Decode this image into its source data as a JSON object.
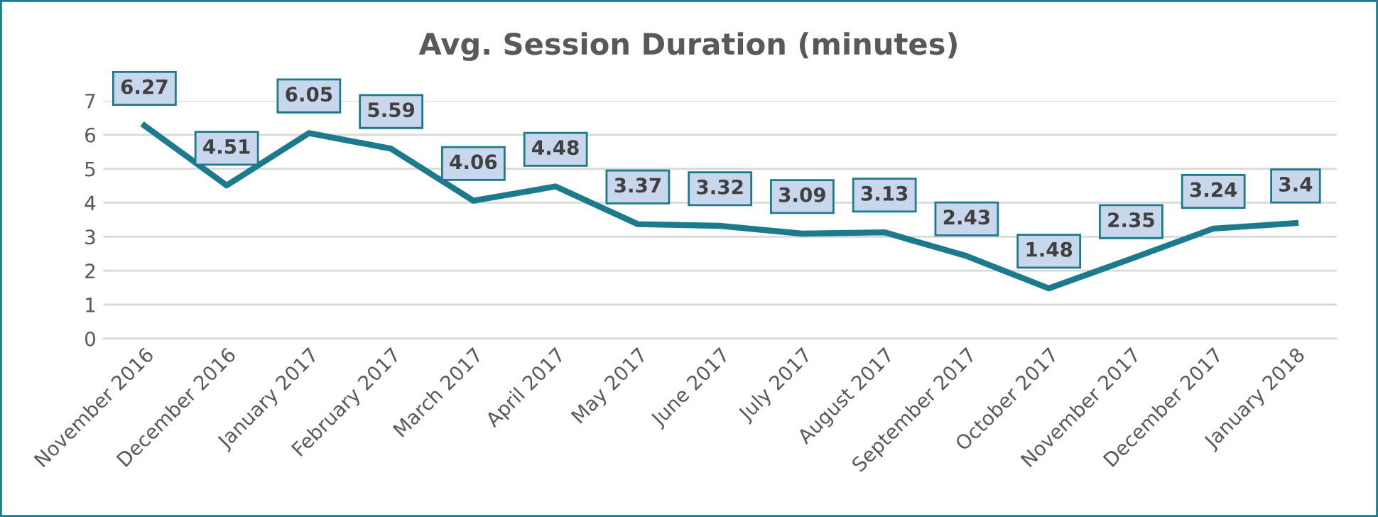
{
  "chart_data": {
    "type": "line",
    "title": "Avg. Session Duration (minutes)",
    "categories": [
      "November 2016",
      "December 2016",
      "January 2017",
      "February 2017",
      "March 2017",
      "April 2017",
      "May 2017",
      "June 2017",
      "July 2017",
      "August 2017",
      "September 2017",
      "October 2017",
      "November 2017",
      "December 2017",
      "January 2018"
    ],
    "series": [
      {
        "color": "#1b7a8c",
        "values": [
          6.27,
          4.51,
          6.05,
          5.59,
          4.06,
          4.48,
          3.37,
          3.32,
          3.09,
          3.13,
          2.43,
          1.48,
          2.35,
          3.24,
          3.4
        ]
      }
    ],
    "ylim": [
      0,
      7
    ],
    "yticks": [
      0,
      1,
      2,
      3,
      4,
      5,
      6,
      7
    ],
    "grid": "y",
    "data_labels": true,
    "marker": "none",
    "line_style": "solid"
  }
}
